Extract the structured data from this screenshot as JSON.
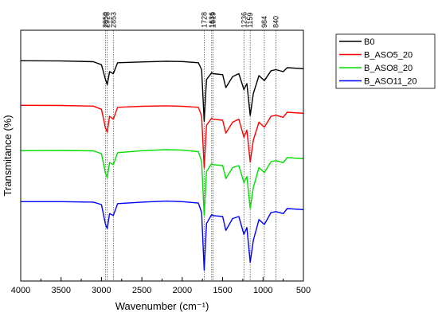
{
  "chart_data": {
    "type": "line",
    "xlabel": "Wavenumber (cm⁻¹)",
    "ylabel": "Transmitance (%)",
    "xlim": [
      4000,
      500
    ],
    "x_reversed": true,
    "x_ticks": [
      4000,
      3500,
      3000,
      2500,
      2000,
      1500,
      1000,
      500
    ],
    "y_ticks_shown": false,
    "grid": false,
    "legend_position": "top-right, outside plot",
    "marker_lines": [
      {
        "x": 2950,
        "label": "2950"
      },
      {
        "x": 2928,
        "label": "2928"
      },
      {
        "x": 2853,
        "label": "2853"
      },
      {
        "x": 1728,
        "label": "1728"
      },
      {
        "x": 1636,
        "label": "1636"
      },
      {
        "x": 1619,
        "label": "1619"
      },
      {
        "x": 1236,
        "label": "1236"
      },
      {
        "x": 1159,
        "label": "1159"
      },
      {
        "x": 984,
        "label": "984"
      },
      {
        "x": 840,
        "label": "840"
      }
    ],
    "series": [
      {
        "name": "B0",
        "color": "#000000",
        "x": [
          4000,
          3500,
          3100,
          3000,
          2950,
          2928,
          2900,
          2853,
          2800,
          2500,
          2200,
          2000,
          1800,
          1760,
          1728,
          1700,
          1636,
          1619,
          1500,
          1460,
          1376,
          1300,
          1236,
          1200,
          1159,
          1120,
          1050,
          984,
          900,
          840,
          750,
          700,
          500
        ],
        "y": [
          1.0,
          1.3,
          2.0,
          5.0,
          20.0,
          25.0,
          12.0,
          14.0,
          3.0,
          2.2,
          1.5,
          1.8,
          3.0,
          10.0,
          62.0,
          20.0,
          13.0,
          14.0,
          15.0,
          28.0,
          17.0,
          14.0,
          30.0,
          24.0,
          56.0,
          34.0,
          16.0,
          21.0,
          11.0,
          10.0,
          12.0,
          8.0,
          9.0
        ]
      },
      {
        "name": "B_ASO5_20",
        "color": "#ff0000",
        "x": [
          4000,
          3500,
          3100,
          3000,
          2950,
          2928,
          2900,
          2853,
          2800,
          2500,
          2200,
          2000,
          1800,
          1760,
          1728,
          1700,
          1636,
          1619,
          1500,
          1460,
          1376,
          1300,
          1236,
          1200,
          1159,
          1120,
          1050,
          984,
          900,
          840,
          750,
          700,
          500
        ],
        "y": [
          1.0,
          1.2,
          1.8,
          5.0,
          24.0,
          28.0,
          12.0,
          15.0,
          3.0,
          2.0,
          1.5,
          2.0,
          3.0,
          12.0,
          64.0,
          21.0,
          14.0,
          15.0,
          16.0,
          29.0,
          18.0,
          15.0,
          33.0,
          26.0,
          58.0,
          36.0,
          18.0,
          23.0,
          12.0,
          11.0,
          13.0,
          8.0,
          9.0
        ]
      },
      {
        "name": "B_ASO8_20",
        "color": "#00dd00",
        "x": [
          4000,
          3500,
          3100,
          3000,
          2950,
          2928,
          2900,
          2853,
          2800,
          2500,
          2200,
          2000,
          1800,
          1760,
          1728,
          1700,
          1636,
          1619,
          1500,
          1460,
          1376,
          1300,
          1236,
          1200,
          1159,
          1120,
          1050,
          984,
          900,
          840,
          750,
          700,
          500
        ],
        "y": [
          1.0,
          0.8,
          1.2,
          4.0,
          24.0,
          28.0,
          13.0,
          15.0,
          3.0,
          1.0,
          0.0,
          0.5,
          2.0,
          12.0,
          66.0,
          22.0,
          14.0,
          15.0,
          16.0,
          29.0,
          18.0,
          16.0,
          33.0,
          27.0,
          59.0,
          38.0,
          18.0,
          23.0,
          12.0,
          11.0,
          13.0,
          8.0,
          9.0
        ]
      },
      {
        "name": "B_ASO11_20",
        "color": "#0000ff",
        "x": [
          4000,
          3500,
          3100,
          3000,
          2950,
          2928,
          2900,
          2853,
          2800,
          2500,
          2200,
          2000,
          1800,
          1760,
          1728,
          1700,
          1636,
          1619,
          1500,
          1460,
          1376,
          1300,
          1236,
          1200,
          1159,
          1120,
          1050,
          984,
          900,
          840,
          750,
          700,
          500
        ],
        "y": [
          1.0,
          1.0,
          1.5,
          4.0,
          24.0,
          28.0,
          13.0,
          15.0,
          3.0,
          1.5,
          0.5,
          1.0,
          2.5,
          12.0,
          70.0,
          23.0,
          14.0,
          15.0,
          16.0,
          30.0,
          18.0,
          16.0,
          34.0,
          27.0,
          62.0,
          40.0,
          19.0,
          24.0,
          12.0,
          11.0,
          13.0,
          8.0,
          9.0
        ]
      }
    ]
  }
}
